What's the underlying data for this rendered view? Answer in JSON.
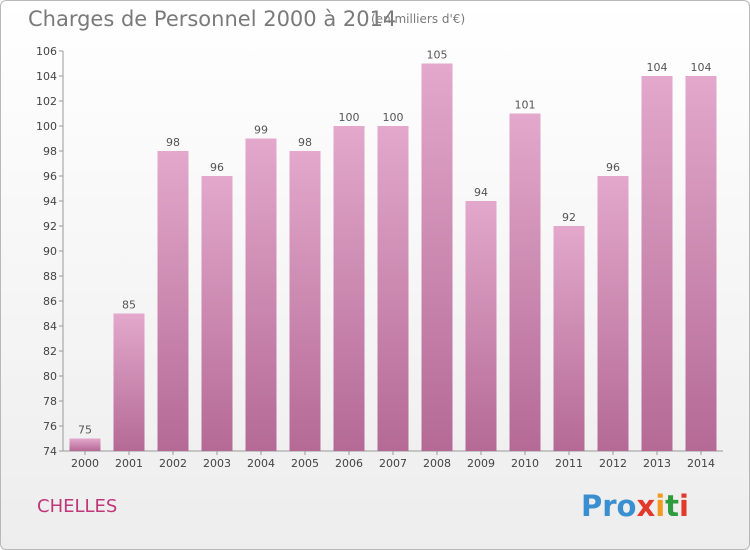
{
  "header": {
    "title": "Charges de Personnel 2000 à 2014",
    "unit": "(en milliers d'€)"
  },
  "footer": {
    "commune": "CHELLES",
    "logo": [
      "Pro",
      "x",
      "i",
      "t",
      "i"
    ]
  },
  "colors": {
    "bar_top": "#e3a8cc",
    "bar_bottom": "#b46a95",
    "commune": "#c0367a",
    "text": "#7a7a7a"
  },
  "chart_data": {
    "type": "bar",
    "title": "Charges de Personnel 2000 à 2014",
    "subtitle": "(en milliers d'€)",
    "categories": [
      "2000",
      "2001",
      "2002",
      "2003",
      "2004",
      "2005",
      "2006",
      "2007",
      "2008",
      "2009",
      "2010",
      "2011",
      "2012",
      "2013",
      "2014"
    ],
    "values": [
      75,
      85,
      98,
      96,
      99,
      98,
      100,
      100,
      105,
      94,
      101,
      92,
      96,
      104,
      104
    ],
    "ylim": [
      74,
      106
    ],
    "yticks": [
      74,
      76,
      78,
      80,
      82,
      84,
      86,
      88,
      90,
      92,
      94,
      96,
      98,
      100,
      102,
      104,
      106
    ],
    "grid": false,
    "legend": "none"
  }
}
